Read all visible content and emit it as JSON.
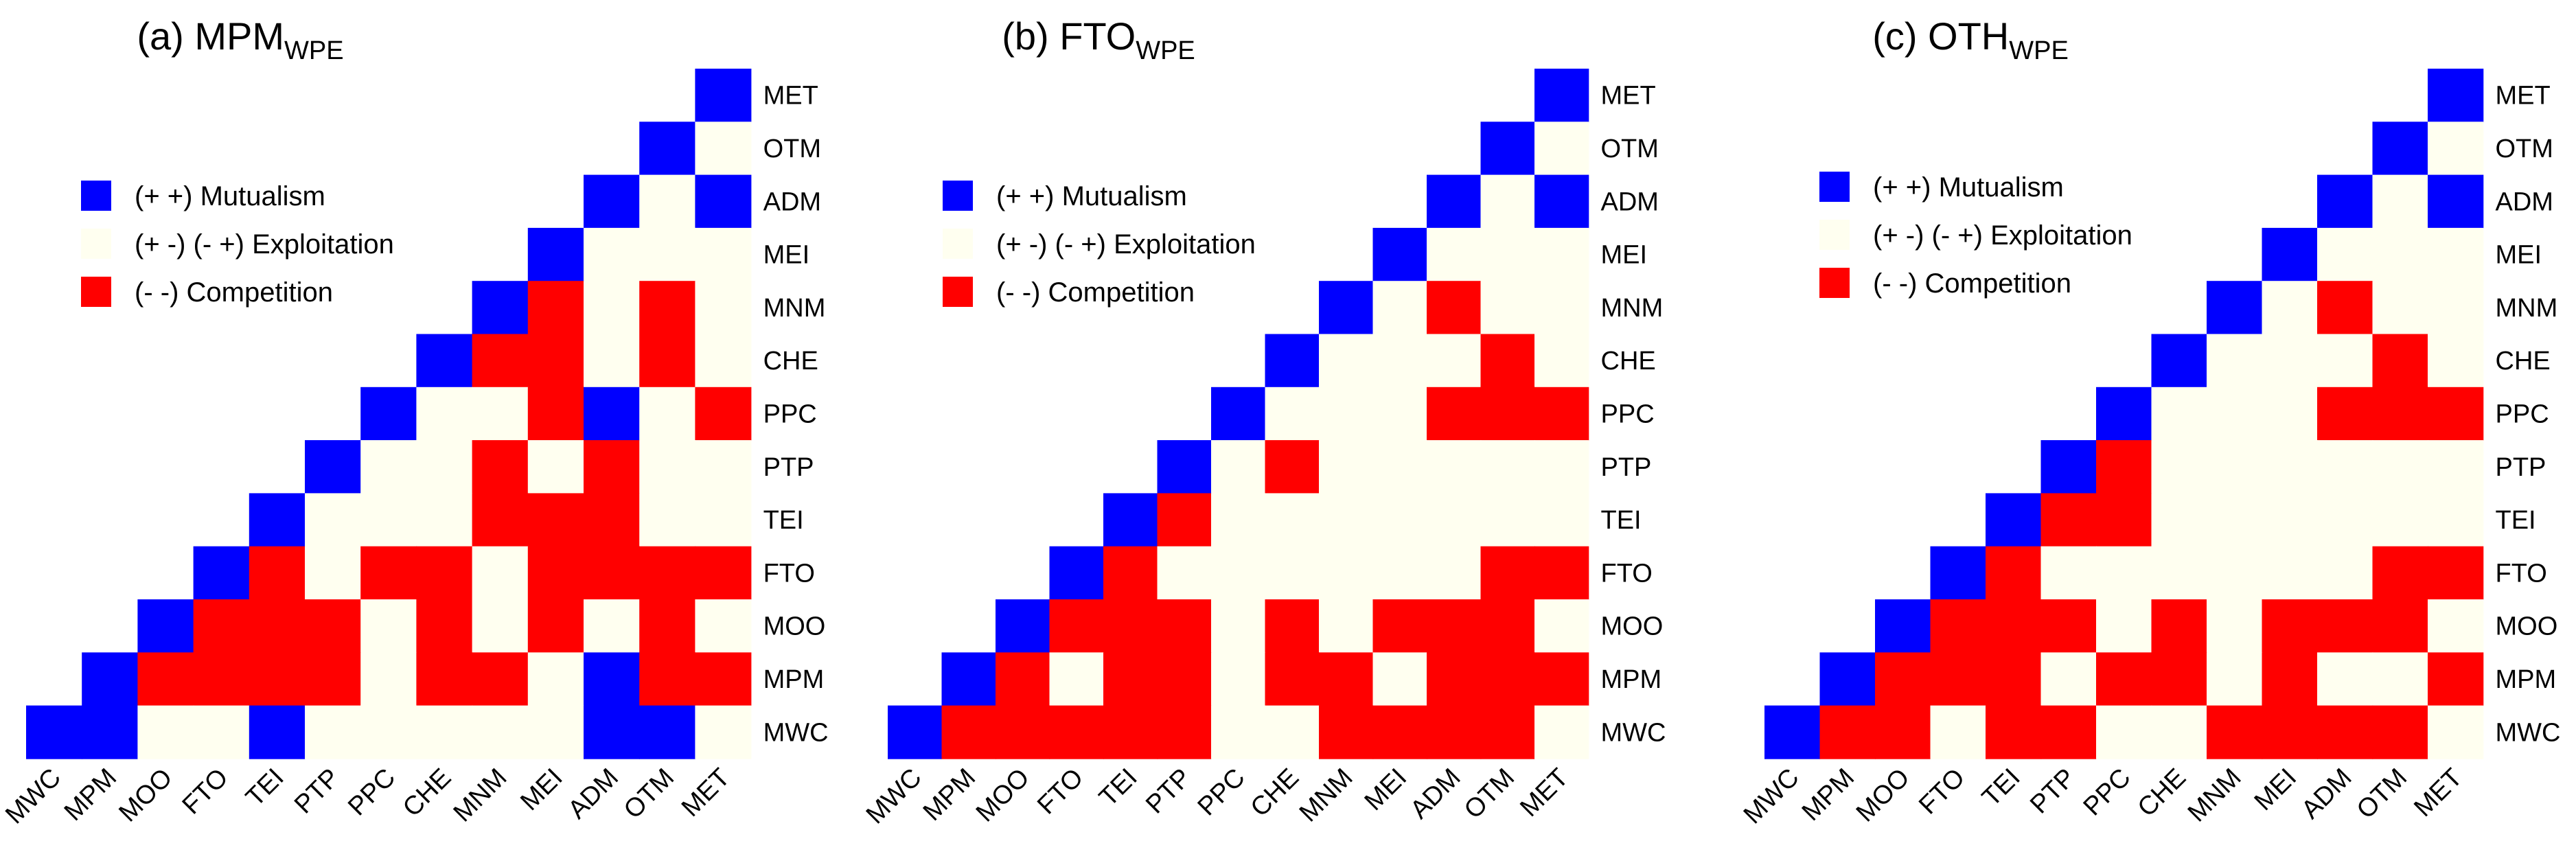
{
  "chart_data": [
    {
      "type": "heatmap",
      "title": "(a) MPM",
      "title_subscript": "WPE",
      "row_labels": [
        "MET",
        "OTM",
        "ADM",
        "MEI",
        "MNM",
        "CHE",
        "PPC",
        "PTP",
        "TEI",
        "FTO",
        "MOO",
        "MPM",
        "MWC"
      ],
      "col_labels": [
        "MWC",
        "MPM",
        "MOO",
        "FTO",
        "TEI",
        "PTP",
        "PPC",
        "CHE",
        "MNM",
        "MEI",
        "ADM",
        "OTM",
        "MET"
      ],
      "legend": {
        "position": "upper-left",
        "items": [
          {
            "code": "M",
            "label": "(+ +) Mutualism",
            "color": "#0000ff"
          },
          {
            "code": "E",
            "label": "(+ -) (- +) Exploitation",
            "color": "#fffff0"
          },
          {
            "code": "C",
            "label": "(- -) Competition",
            "color": "#ff0000"
          }
        ]
      },
      "cells": [
        "............M",
        "...........ME",
        "..........MEM",
        ".........MEEE",
        "........MCECE",
        ".......MCCECE",
        "......MEECMEC",
        ".....MEECECEE",
        "....MEEECCCEE",
        "...MCECCECCCC",
        "..MCCCECECECE",
        ".MCCCCECCEMCC",
        "MMEEMEEEEEMME"
      ]
    },
    {
      "type": "heatmap",
      "title": "(b) FTO",
      "title_subscript": "WPE",
      "row_labels": [
        "MET",
        "OTM",
        "ADM",
        "MEI",
        "MNM",
        "CHE",
        "PPC",
        "PTP",
        "TEI",
        "FTO",
        "MOO",
        "MPM",
        "MWC"
      ],
      "col_labels": [
        "MWC",
        "MPM",
        "MOO",
        "FTO",
        "TEI",
        "PTP",
        "PPC",
        "CHE",
        "MNM",
        "MEI",
        "ADM",
        "OTM",
        "MET"
      ],
      "legend": {
        "position": "upper-left",
        "items": [
          {
            "code": "M",
            "label": "(+ +) Mutualism",
            "color": "#0000ff"
          },
          {
            "code": "E",
            "label": "(+ -) (- +) Exploitation",
            "color": "#fffff0"
          },
          {
            "code": "C",
            "label": "(- -) Competition",
            "color": "#ff0000"
          }
        ]
      },
      "cells": [
        "............M",
        "...........ME",
        "..........MEM",
        ".........MEEE",
        "........MECEE",
        ".......MEEECE",
        "......MEEECCC",
        ".....MECEEEEE",
        "....MCEEEEEEE",
        "...MCEEEEEECC",
        "..MCCCECECCCE",
        ".MCECCECCECCC",
        "MCCCCCEECCCCE"
      ]
    },
    {
      "type": "heatmap",
      "title": "(c) OTH",
      "title_subscript": "WPE",
      "row_labels": [
        "MET",
        "OTM",
        "ADM",
        "MEI",
        "MNM",
        "CHE",
        "PPC",
        "PTP",
        "TEI",
        "FTO",
        "MOO",
        "MPM",
        "MWC"
      ],
      "col_labels": [
        "MWC",
        "MPM",
        "MOO",
        "FTO",
        "TEI",
        "PTP",
        "PPC",
        "CHE",
        "MNM",
        "MEI",
        "ADM",
        "OTM",
        "MET"
      ],
      "legend": {
        "position": "upper-left",
        "items": [
          {
            "code": "M",
            "label": "(+ +) Mutualism",
            "color": "#0000ff"
          },
          {
            "code": "E",
            "label": "(+ -) (- +) Exploitation",
            "color": "#fffff0"
          },
          {
            "code": "C",
            "label": "(- -) Competition",
            "color": "#ff0000"
          }
        ]
      },
      "cells": [
        "............M",
        "...........ME",
        "..........MEM",
        ".........MEEE",
        "........MECEE",
        ".......MEEECE",
        "......MEEECCC",
        ".....MCEEEEEE",
        "....MCCEEEEEE",
        "...MCEEEEEECC",
        "..MCCCECECCCE",
        ".MCCCECCECEEC",
        "MCCECCEECCCCE"
      ]
    }
  ]
}
